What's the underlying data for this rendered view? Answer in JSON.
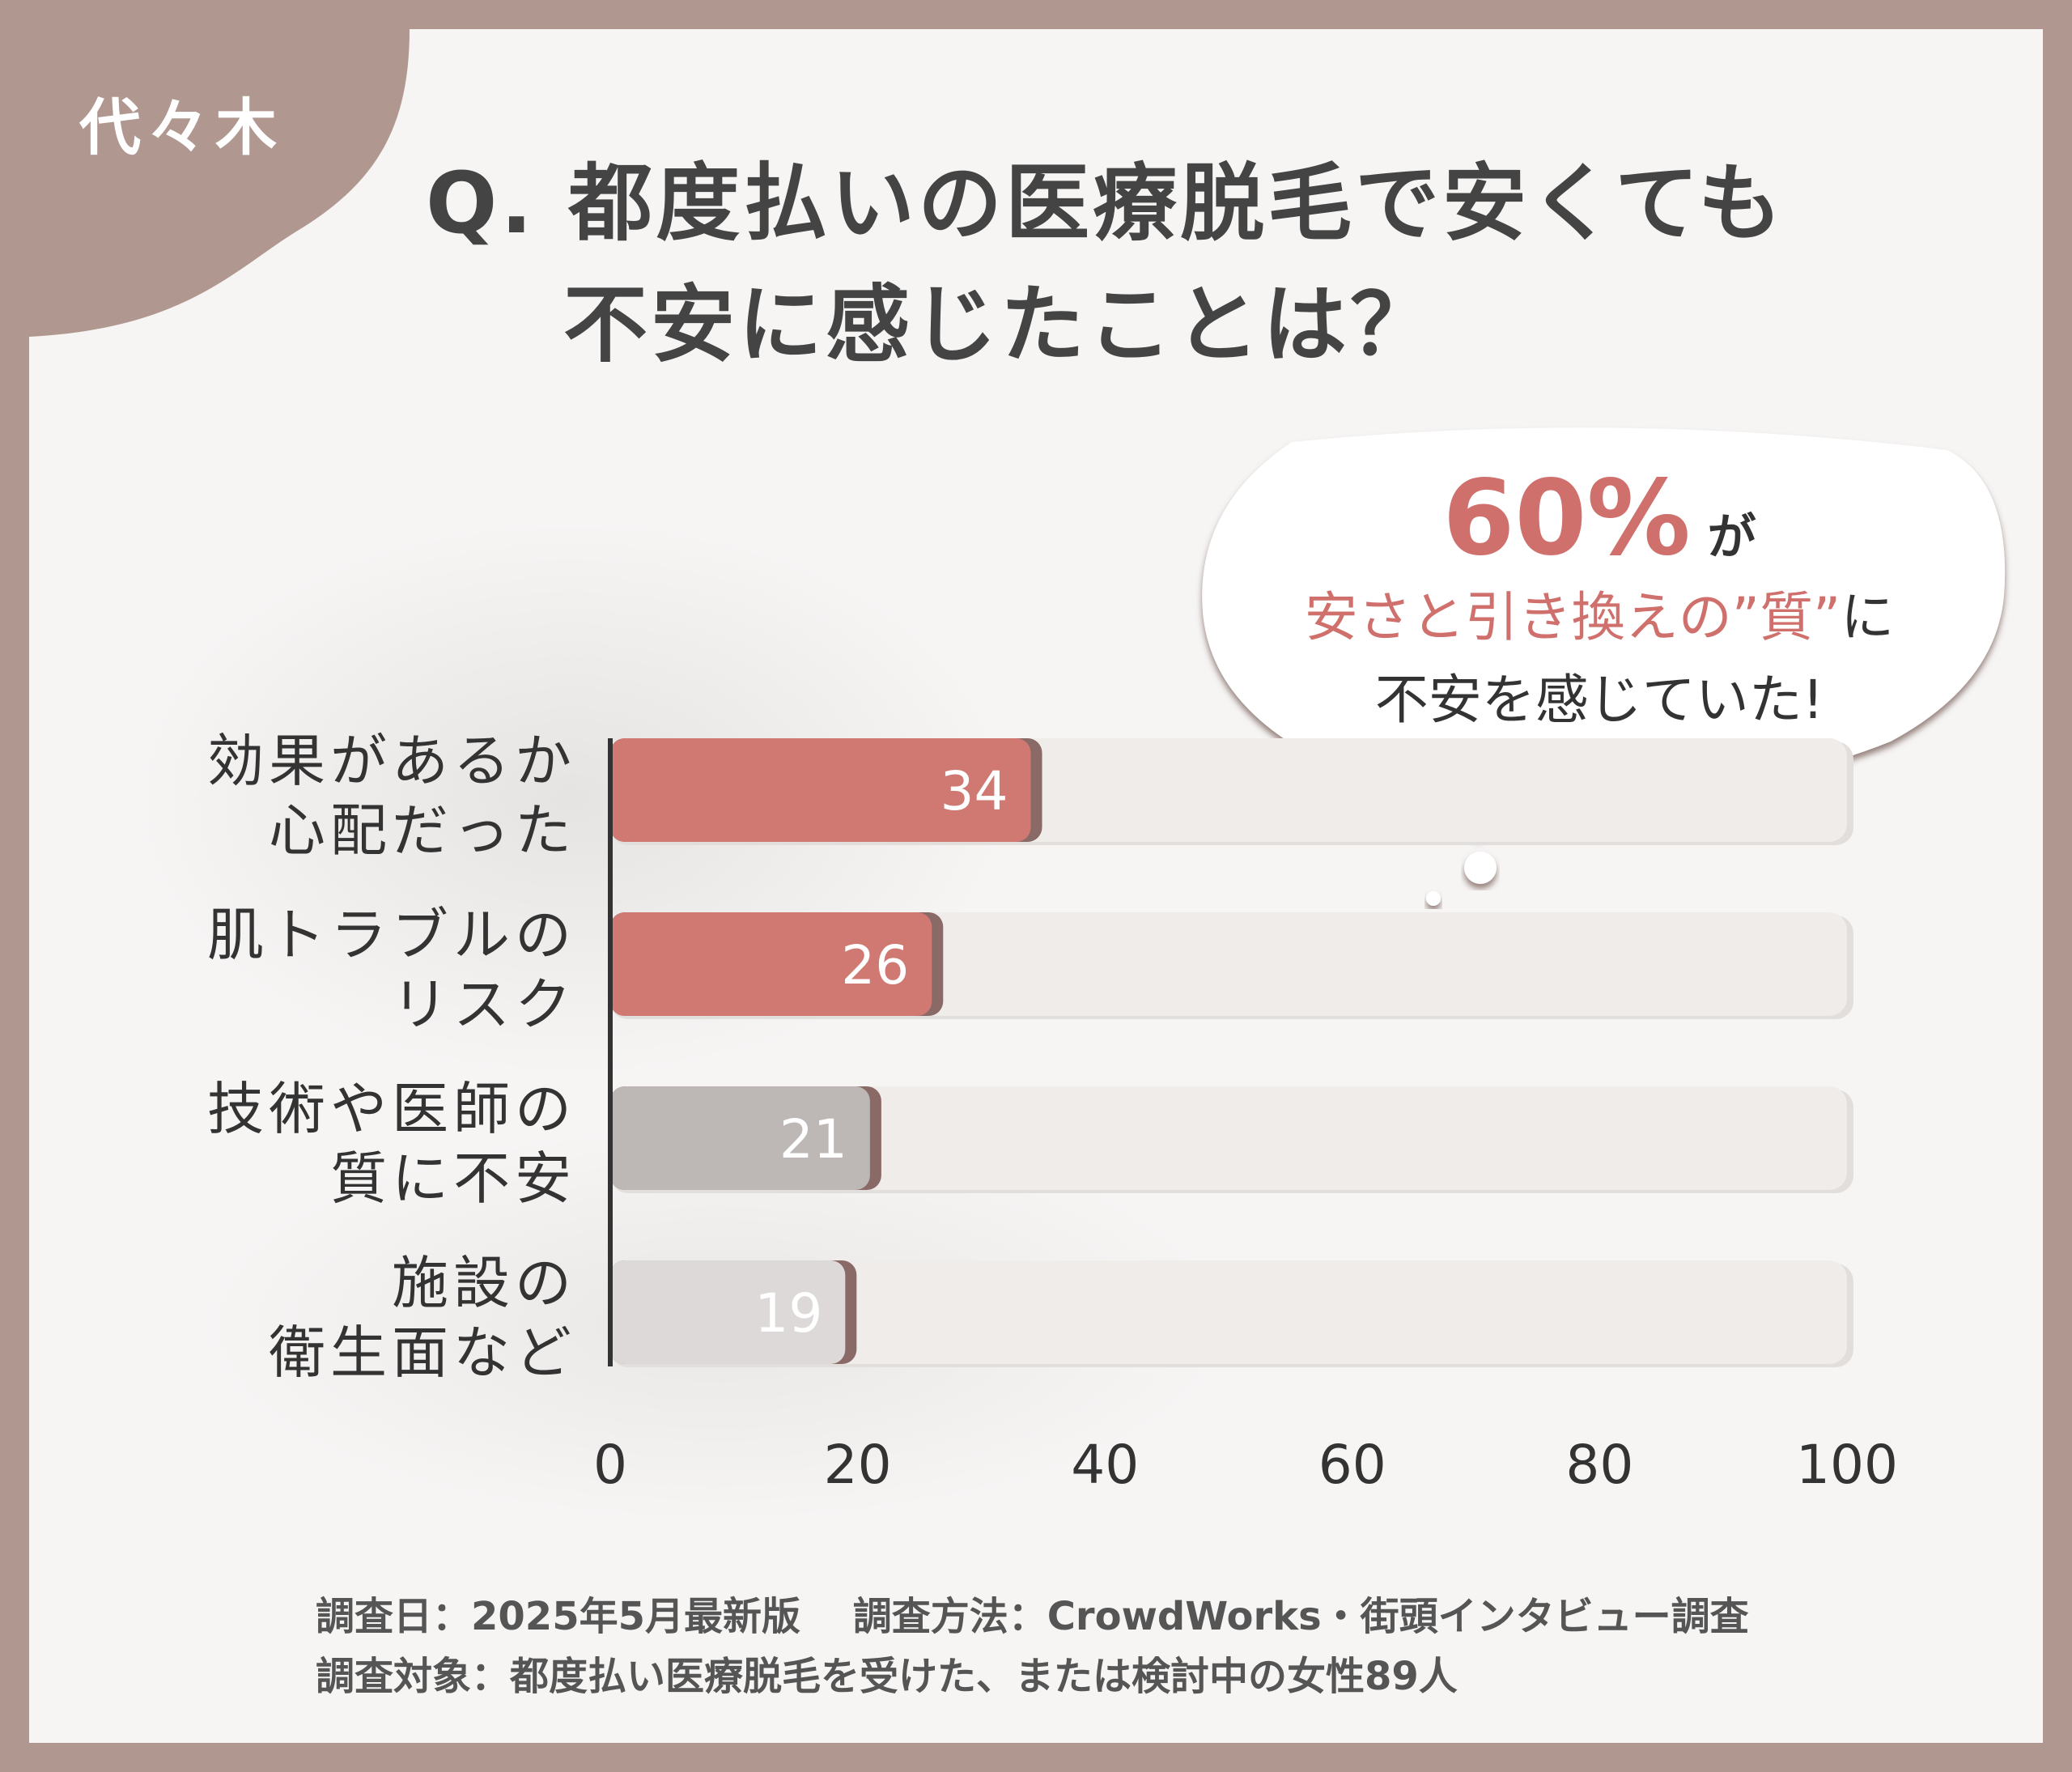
{
  "corner_label": "代々木",
  "question": {
    "line1": "Q. 都度払いの医療脱毛で安くても",
    "line2": "不安に感じたことは？"
  },
  "callout": {
    "percent": "60%",
    "percent_suffix": "が",
    "line2_highlight": "安さと引き換えの”質”",
    "line2_tail": "に",
    "line3": "不安を感じていた!"
  },
  "chart_data": {
    "type": "bar",
    "orientation": "horizontal",
    "categories": [
      [
        "効果があるか",
        "心配だった"
      ],
      [
        "肌トラブルの",
        "リスク"
      ],
      [
        "技術や医師の",
        "質に不安"
      ],
      [
        "施設の",
        "衛生面など"
      ]
    ],
    "values": [
      34,
      26,
      21,
      19
    ],
    "xlim": [
      0,
      100
    ],
    "xticks": [
      "0",
      "20",
      "40",
      "60",
      "80",
      "100"
    ],
    "colors": [
      "#d07872",
      "#d07872",
      "#bdb8b6",
      "#dcd9d8"
    ],
    "track_color": "#efecea",
    "grid": false
  },
  "footnote": {
    "line1": "調査日：2025年5月最新版　 調査方法：CrowdWorks・街頭インタビュー調査",
    "line2": "調査対象：都度払い医療脱毛を受けた、または検討中の女性89人"
  }
}
